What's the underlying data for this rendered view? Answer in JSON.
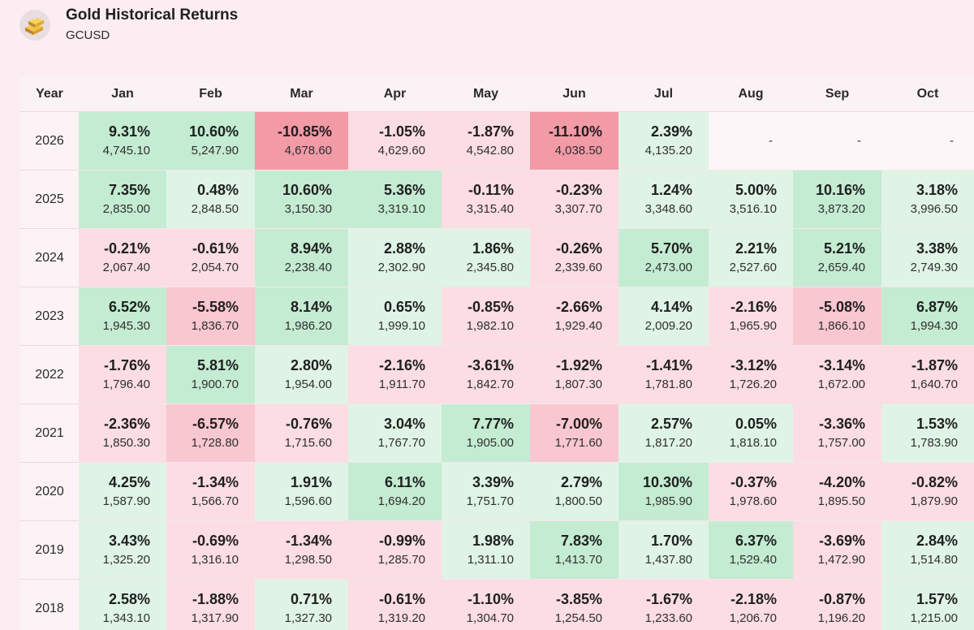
{
  "header": {
    "title": "Gold Historical Returns",
    "symbol": "GCUSD",
    "logo_icon": "gold-bars-icon"
  },
  "table": {
    "columns": [
      "Year",
      "Jan",
      "Feb",
      "Mar",
      "Apr",
      "May",
      "Jun",
      "Jul",
      "Aug",
      "Sep",
      "Oct"
    ],
    "empty_marker": "-",
    "colors": {
      "strong_neg": "#f29aa6",
      "mid_neg": "#f9c7d0",
      "light_neg": "#fbdde3",
      "light_pos": "#dff4e6",
      "mid_pos": "#c4ecd2",
      "strong_pos": "#abe3bf"
    },
    "rows": [
      {
        "year": "2026",
        "cells": [
          {
            "pct": "9.31%",
            "price": "4,745.10",
            "tone": "mid_pos"
          },
          {
            "pct": "10.60%",
            "price": "5,247.90",
            "tone": "mid_pos"
          },
          {
            "pct": "-10.85%",
            "price": "4,678.60",
            "tone": "strong_neg"
          },
          {
            "pct": "-1.05%",
            "price": "4,629.60",
            "tone": "light_neg"
          },
          {
            "pct": "-1.87%",
            "price": "4,542.80",
            "tone": "light_neg"
          },
          {
            "pct": "-11.10%",
            "price": "4,038.50",
            "tone": "strong_neg"
          },
          {
            "pct": "2.39%",
            "price": "4,135.20",
            "tone": "light_pos"
          },
          {
            "empty": true
          },
          {
            "empty": true
          },
          {
            "empty": true
          }
        ]
      },
      {
        "year": "2025",
        "cells": [
          {
            "pct": "7.35%",
            "price": "2,835.00",
            "tone": "mid_pos"
          },
          {
            "pct": "0.48%",
            "price": "2,848.50",
            "tone": "light_pos"
          },
          {
            "pct": "10.60%",
            "price": "3,150.30",
            "tone": "mid_pos"
          },
          {
            "pct": "5.36%",
            "price": "3,319.10",
            "tone": "mid_pos"
          },
          {
            "pct": "-0.11%",
            "price": "3,315.40",
            "tone": "light_neg"
          },
          {
            "pct": "-0.23%",
            "price": "3,307.70",
            "tone": "light_neg"
          },
          {
            "pct": "1.24%",
            "price": "3,348.60",
            "tone": "light_pos"
          },
          {
            "pct": "5.00%",
            "price": "3,516.10",
            "tone": "light_pos"
          },
          {
            "pct": "10.16%",
            "price": "3,873.20",
            "tone": "mid_pos"
          },
          {
            "pct": "3.18%",
            "price": "3,996.50",
            "tone": "light_pos"
          }
        ]
      },
      {
        "year": "2024",
        "cells": [
          {
            "pct": "-0.21%",
            "price": "2,067.40",
            "tone": "light_neg"
          },
          {
            "pct": "-0.61%",
            "price": "2,054.70",
            "tone": "light_neg"
          },
          {
            "pct": "8.94%",
            "price": "2,238.40",
            "tone": "mid_pos"
          },
          {
            "pct": "2.88%",
            "price": "2,302.90",
            "tone": "light_pos"
          },
          {
            "pct": "1.86%",
            "price": "2,345.80",
            "tone": "light_pos"
          },
          {
            "pct": "-0.26%",
            "price": "2,339.60",
            "tone": "light_neg"
          },
          {
            "pct": "5.70%",
            "price": "2,473.00",
            "tone": "mid_pos"
          },
          {
            "pct": "2.21%",
            "price": "2,527.60",
            "tone": "light_pos"
          },
          {
            "pct": "5.21%",
            "price": "2,659.40",
            "tone": "mid_pos"
          },
          {
            "pct": "3.38%",
            "price": "2,749.30",
            "tone": "light_pos"
          }
        ]
      },
      {
        "year": "2023",
        "cells": [
          {
            "pct": "6.52%",
            "price": "1,945.30",
            "tone": "mid_pos"
          },
          {
            "pct": "-5.58%",
            "price": "1,836.70",
            "tone": "mid_neg"
          },
          {
            "pct": "8.14%",
            "price": "1,986.20",
            "tone": "mid_pos"
          },
          {
            "pct": "0.65%",
            "price": "1,999.10",
            "tone": "light_pos"
          },
          {
            "pct": "-0.85%",
            "price": "1,982.10",
            "tone": "light_neg"
          },
          {
            "pct": "-2.66%",
            "price": "1,929.40",
            "tone": "light_neg"
          },
          {
            "pct": "4.14%",
            "price": "2,009.20",
            "tone": "light_pos"
          },
          {
            "pct": "-2.16%",
            "price": "1,965.90",
            "tone": "light_neg"
          },
          {
            "pct": "-5.08%",
            "price": "1,866.10",
            "tone": "mid_neg"
          },
          {
            "pct": "6.87%",
            "price": "1,994.30",
            "tone": "mid_pos"
          }
        ]
      },
      {
        "year": "2022",
        "cells": [
          {
            "pct": "-1.76%",
            "price": "1,796.40",
            "tone": "light_neg"
          },
          {
            "pct": "5.81%",
            "price": "1,900.70",
            "tone": "mid_pos"
          },
          {
            "pct": "2.80%",
            "price": "1,954.00",
            "tone": "light_pos"
          },
          {
            "pct": "-2.16%",
            "price": "1,911.70",
            "tone": "light_neg"
          },
          {
            "pct": "-3.61%",
            "price": "1,842.70",
            "tone": "light_neg"
          },
          {
            "pct": "-1.92%",
            "price": "1,807.30",
            "tone": "light_neg"
          },
          {
            "pct": "-1.41%",
            "price": "1,781.80",
            "tone": "light_neg"
          },
          {
            "pct": "-3.12%",
            "price": "1,726.20",
            "tone": "light_neg"
          },
          {
            "pct": "-3.14%",
            "price": "1,672.00",
            "tone": "light_neg"
          },
          {
            "pct": "-1.87%",
            "price": "1,640.70",
            "tone": "light_neg"
          }
        ]
      },
      {
        "year": "2021",
        "cells": [
          {
            "pct": "-2.36%",
            "price": "1,850.30",
            "tone": "light_neg"
          },
          {
            "pct": "-6.57%",
            "price": "1,728.80",
            "tone": "mid_neg"
          },
          {
            "pct": "-0.76%",
            "price": "1,715.60",
            "tone": "light_neg"
          },
          {
            "pct": "3.04%",
            "price": "1,767.70",
            "tone": "light_pos"
          },
          {
            "pct": "7.77%",
            "price": "1,905.00",
            "tone": "mid_pos"
          },
          {
            "pct": "-7.00%",
            "price": "1,771.60",
            "tone": "mid_neg"
          },
          {
            "pct": "2.57%",
            "price": "1,817.20",
            "tone": "light_pos"
          },
          {
            "pct": "0.05%",
            "price": "1,818.10",
            "tone": "light_pos"
          },
          {
            "pct": "-3.36%",
            "price": "1,757.00",
            "tone": "light_neg"
          },
          {
            "pct": "1.53%",
            "price": "1,783.90",
            "tone": "light_pos"
          }
        ]
      },
      {
        "year": "2020",
        "cells": [
          {
            "pct": "4.25%",
            "price": "1,587.90",
            "tone": "light_pos"
          },
          {
            "pct": "-1.34%",
            "price": "1,566.70",
            "tone": "light_neg"
          },
          {
            "pct": "1.91%",
            "price": "1,596.60",
            "tone": "light_pos"
          },
          {
            "pct": "6.11%",
            "price": "1,694.20",
            "tone": "mid_pos"
          },
          {
            "pct": "3.39%",
            "price": "1,751.70",
            "tone": "light_pos"
          },
          {
            "pct": "2.79%",
            "price": "1,800.50",
            "tone": "light_pos"
          },
          {
            "pct": "10.30%",
            "price": "1,985.90",
            "tone": "mid_pos"
          },
          {
            "pct": "-0.37%",
            "price": "1,978.60",
            "tone": "light_neg"
          },
          {
            "pct": "-4.20%",
            "price": "1,895.50",
            "tone": "light_neg"
          },
          {
            "pct": "-0.82%",
            "price": "1,879.90",
            "tone": "light_neg"
          }
        ]
      },
      {
        "year": "2019",
        "cells": [
          {
            "pct": "3.43%",
            "price": "1,325.20",
            "tone": "light_pos"
          },
          {
            "pct": "-0.69%",
            "price": "1,316.10",
            "tone": "light_neg"
          },
          {
            "pct": "-1.34%",
            "price": "1,298.50",
            "tone": "light_neg"
          },
          {
            "pct": "-0.99%",
            "price": "1,285.70",
            "tone": "light_neg"
          },
          {
            "pct": "1.98%",
            "price": "1,311.10",
            "tone": "light_pos"
          },
          {
            "pct": "7.83%",
            "price": "1,413.70",
            "tone": "mid_pos"
          },
          {
            "pct": "1.70%",
            "price": "1,437.80",
            "tone": "light_pos"
          },
          {
            "pct": "6.37%",
            "price": "1,529.40",
            "tone": "mid_pos"
          },
          {
            "pct": "-3.69%",
            "price": "1,472.90",
            "tone": "light_neg"
          },
          {
            "pct": "2.84%",
            "price": "1,514.80",
            "tone": "light_pos"
          }
        ]
      },
      {
        "year": "2018",
        "cells": [
          {
            "pct": "2.58%",
            "price": "1,343.10",
            "tone": "light_pos"
          },
          {
            "pct": "-1.88%",
            "price": "1,317.90",
            "tone": "light_neg"
          },
          {
            "pct": "0.71%",
            "price": "1,327.30",
            "tone": "light_pos"
          },
          {
            "pct": "-0.61%",
            "price": "1,319.20",
            "tone": "light_neg"
          },
          {
            "pct": "-1.10%",
            "price": "1,304.70",
            "tone": "light_neg"
          },
          {
            "pct": "-3.85%",
            "price": "1,254.50",
            "tone": "light_neg"
          },
          {
            "pct": "-1.67%",
            "price": "1,233.60",
            "tone": "light_neg"
          },
          {
            "pct": "-2.18%",
            "price": "1,206.70",
            "tone": "light_neg"
          },
          {
            "pct": "-0.87%",
            "price": "1,196.20",
            "tone": "light_neg"
          },
          {
            "pct": "1.57%",
            "price": "1,215.00",
            "tone": "light_pos"
          }
        ]
      }
    ]
  }
}
